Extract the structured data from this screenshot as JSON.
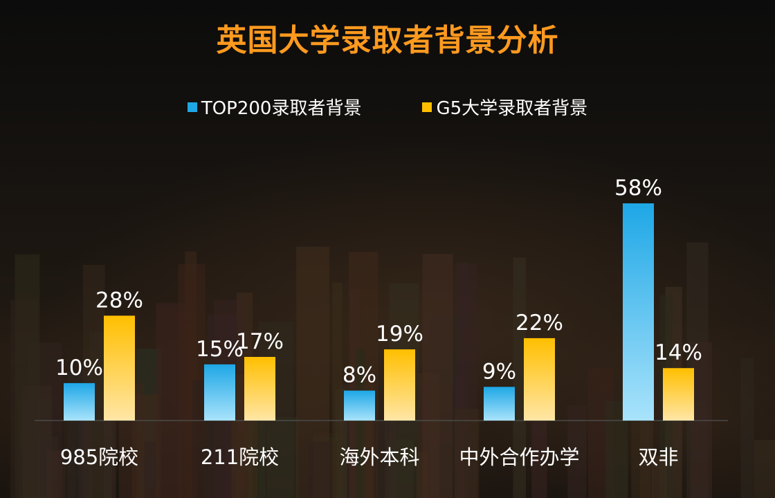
{
  "chart_data": {
    "type": "bar",
    "title": "英国大学录取者背景分析",
    "categories": [
      "985院校",
      "211院校",
      "海外本科",
      "中外合作办学",
      "双非"
    ],
    "series": [
      {
        "name": "TOP200录取者背景",
        "values": [
          10,
          15,
          8,
          9,
          58
        ],
        "color": "#1ea7e6"
      },
      {
        "name": "G5大学录取者背景",
        "values": [
          28,
          17,
          19,
          22,
          14
        ],
        "color": "#ffbf00"
      }
    ],
    "value_suffix": "%",
    "ylim": [
      0,
      58
    ],
    "legend_position": "top-center",
    "grid": false
  },
  "colors": {
    "title": "#ff9a1f",
    "series_a_light": "#a9e3fb",
    "series_b_light": "#ffe6a6",
    "baseline": "#4a4a4a"
  }
}
